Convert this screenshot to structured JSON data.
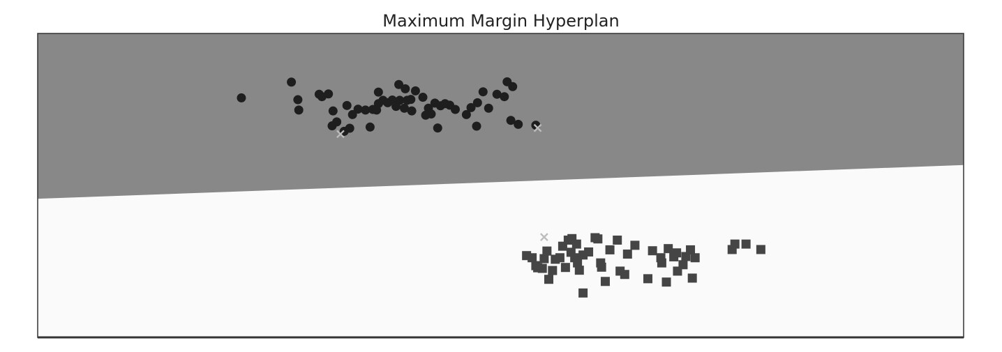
{
  "chart_data": {
    "type": "scatter",
    "title": "Maximum Margin Hyperplan",
    "xlabel": "",
    "ylabel": "",
    "xlim": [
      0,
      100
    ],
    "ylim": [
      0,
      100
    ],
    "grid": false,
    "decision_boundary": {
      "x": [
        0,
        100
      ],
      "y": [
        45.6,
        56.7
      ]
    },
    "regions": {
      "upper_color": "#888888",
      "lower_color": "#fafafa"
    },
    "series": [
      {
        "marker": "circle",
        "color": "#1e1e1e",
        "points": [
          [
            22.0,
            78.8
          ],
          [
            27.4,
            84.0
          ],
          [
            28.1,
            78.2
          ],
          [
            28.2,
            74.8
          ],
          [
            30.4,
            80.0
          ],
          [
            30.7,
            79.2
          ],
          [
            31.4,
            80.1
          ],
          [
            31.9,
            74.5
          ],
          [
            31.8,
            69.6
          ],
          [
            32.3,
            70.9
          ],
          [
            33.1,
            67.8
          ],
          [
            33.7,
            68.8
          ],
          [
            34.0,
            73.3
          ],
          [
            33.4,
            76.3
          ],
          [
            34.6,
            75.1
          ],
          [
            35.4,
            74.8
          ],
          [
            35.9,
            69.2
          ],
          [
            36.2,
            75.0
          ],
          [
            36.6,
            74.8
          ],
          [
            36.8,
            76.9
          ],
          [
            36.8,
            80.7
          ],
          [
            37.3,
            78.0
          ],
          [
            37.8,
            77.2
          ],
          [
            38.3,
            78.1
          ],
          [
            38.7,
            76.0
          ],
          [
            39.0,
            83.2
          ],
          [
            39.1,
            78.0
          ],
          [
            39.6,
            75.4
          ],
          [
            39.7,
            81.8
          ],
          [
            39.9,
            78.0
          ],
          [
            40.3,
            78.3
          ],
          [
            40.4,
            74.5
          ],
          [
            40.8,
            81.1
          ],
          [
            41.6,
            79.0
          ],
          [
            41.9,
            73.1
          ],
          [
            42.2,
            75.4
          ],
          [
            42.5,
            73.5
          ],
          [
            42.9,
            77.1
          ],
          [
            43.2,
            68.9
          ],
          [
            43.5,
            76.2
          ],
          [
            44.0,
            76.9
          ],
          [
            44.5,
            76.4
          ],
          [
            45.1,
            75.0
          ],
          [
            46.3,
            73.3
          ],
          [
            46.8,
            75.6
          ],
          [
            47.4,
            69.5
          ],
          [
            47.5,
            77.2
          ],
          [
            48.1,
            80.8
          ],
          [
            48.7,
            75.4
          ],
          [
            49.6,
            80.0
          ],
          [
            50.4,
            79.2
          ],
          [
            50.7,
            84.1
          ],
          [
            51.3,
            82.5
          ],
          [
            51.1,
            71.4
          ],
          [
            51.9,
            70.1
          ],
          [
            53.8,
            69.8
          ]
        ]
      },
      {
        "marker": "square",
        "color": "#454545",
        "points": [
          [
            52.8,
            26.9
          ],
          [
            53.4,
            26.2
          ],
          [
            53.8,
            23.6
          ],
          [
            54.5,
            22.7
          ],
          [
            54.0,
            22.9
          ],
          [
            54.7,
            25.9
          ],
          [
            55.0,
            28.4
          ],
          [
            55.9,
            25.7
          ],
          [
            55.2,
            19.1
          ],
          [
            55.6,
            22.0
          ],
          [
            56.4,
            26.2
          ],
          [
            56.7,
            30.0
          ],
          [
            57.0,
            23.0
          ],
          [
            57.3,
            32.0
          ],
          [
            57.6,
            28.0
          ],
          [
            57.7,
            32.5
          ],
          [
            58.0,
            26.2
          ],
          [
            58.2,
            30.7
          ],
          [
            58.3,
            24.5
          ],
          [
            58.5,
            22.1
          ],
          [
            58.9,
            27.1
          ],
          [
            58.9,
            14.6
          ],
          [
            59.5,
            28.1
          ],
          [
            60.2,
            32.8
          ],
          [
            60.5,
            32.4
          ],
          [
            60.8,
            24.5
          ],
          [
            60.9,
            23.1
          ],
          [
            61.3,
            18.4
          ],
          [
            61.8,
            28.8
          ],
          [
            62.6,
            32.0
          ],
          [
            62.9,
            21.8
          ],
          [
            63.4,
            20.7
          ],
          [
            63.7,
            27.4
          ],
          [
            64.5,
            30.3
          ],
          [
            65.9,
            19.3
          ],
          [
            66.4,
            28.5
          ],
          [
            67.3,
            26.2
          ],
          [
            67.4,
            24.5
          ],
          [
            67.9,
            18.2
          ],
          [
            68.1,
            29.2
          ],
          [
            68.7,
            26.5
          ],
          [
            69.0,
            27.8
          ],
          [
            69.1,
            21.8
          ],
          [
            69.7,
            23.9
          ],
          [
            70.0,
            26.6
          ],
          [
            70.5,
            28.8
          ],
          [
            70.7,
            19.5
          ],
          [
            71.0,
            26.2
          ],
          [
            75.0,
            28.9
          ],
          [
            75.3,
            30.7
          ],
          [
            76.5,
            30.7
          ],
          [
            78.1,
            28.9
          ]
        ]
      }
    ],
    "support_vectors": [
      [
        32.7,
        66.9
      ],
      [
        54.0,
        68.9
      ],
      [
        54.7,
        33.0
      ]
    ]
  }
}
